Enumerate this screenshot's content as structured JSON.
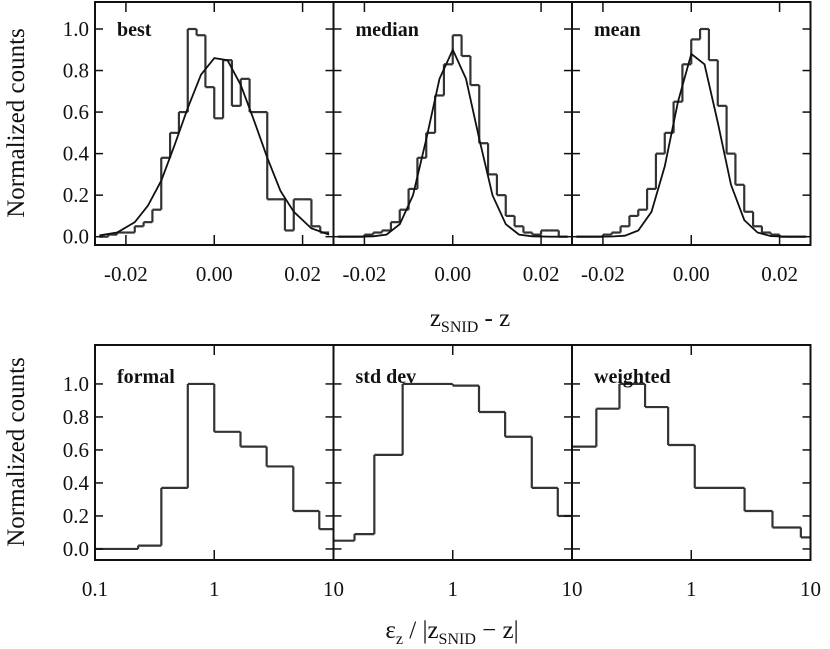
{
  "chart_data": [
    {
      "type": "histogram",
      "label": "best",
      "bins": [
        -0.026,
        -0.024,
        -0.022,
        -0.02,
        -0.018,
        -0.016,
        -0.014,
        -0.012,
        -0.01,
        -0.008,
        -0.006,
        -0.004,
        -0.002,
        0,
        0.002,
        0.004,
        0.006,
        0.008,
        0.01,
        0.012,
        0.014,
        0.016,
        0.018,
        0.02,
        0.022,
        0.024,
        0.026
      ],
      "values": [
        0,
        0.01,
        0.02,
        0.02,
        0.05,
        0.07,
        0.13,
        0.38,
        0.5,
        0.6,
        1.0,
        0.97,
        0.72,
        0.57,
        0.85,
        0.63,
        0.76,
        0.6,
        0.6,
        0.18,
        0.18,
        0.03,
        0.18,
        0.18,
        0.05,
        0.02
      ],
      "curve": {
        "x": [
          -0.026,
          -0.022,
          -0.018,
          -0.015,
          -0.012,
          -0.009,
          -0.006,
          -0.003,
          0,
          0.003,
          0.006,
          0.009,
          0.012,
          0.015,
          0.018,
          0.022,
          0.026
        ],
        "y": [
          0.006,
          0.02,
          0.07,
          0.15,
          0.27,
          0.44,
          0.62,
          0.78,
          0.86,
          0.85,
          0.73,
          0.56,
          0.38,
          0.22,
          0.12,
          0.04,
          0.01
        ]
      },
      "xlim": [
        -0.027,
        0.027
      ],
      "ylim": [
        -0.04,
        1.13
      ],
      "xticks": [
        -0.02,
        {
          "value": 0,
          "label": "0.00"
        },
        0.02
      ],
      "yticks": [
        {
          "value": 0,
          "label": "0.0"
        },
        0.2,
        0.4,
        0.6,
        0.8,
        {
          "value": 1,
          "label": "1.0"
        }
      ],
      "ytick_labels": true,
      "xscale": "linear",
      "color": "#333333"
    },
    {
      "type": "histogram",
      "label": "median",
      "bins": [
        -0.026,
        -0.024,
        -0.022,
        -0.02,
        -0.018,
        -0.016,
        -0.014,
        -0.012,
        -0.01,
        -0.008,
        -0.006,
        -0.004,
        -0.002,
        0,
        0.002,
        0.004,
        0.006,
        0.008,
        0.01,
        0.012,
        0.014,
        0.016,
        0.018,
        0.02,
        0.022,
        0.024,
        0.026
      ],
      "values": [
        0,
        0,
        0,
        0.01,
        0.02,
        0.03,
        0.07,
        0.13,
        0.23,
        0.38,
        0.5,
        0.68,
        0.83,
        0.97,
        0.87,
        0.73,
        0.45,
        0.3,
        0.2,
        0.1,
        0.05,
        0.02,
        0.01,
        0.03,
        0.03,
        0
      ],
      "curve": {
        "x": [
          -0.026,
          -0.022,
          -0.018,
          -0.015,
          -0.012,
          -0.009,
          -0.006,
          -0.003,
          0,
          0.003,
          0.006,
          0.009,
          0.012,
          0.015,
          0.018,
          0.022,
          0.026
        ],
        "y": [
          0,
          0,
          0.002,
          0.01,
          0.06,
          0.2,
          0.47,
          0.76,
          0.9,
          0.76,
          0.47,
          0.2,
          0.06,
          0.01,
          0.002,
          0,
          0
        ]
      },
      "xlim": [
        -0.027,
        0.027
      ],
      "ylim": [
        -0.04,
        1.13
      ],
      "xticks": [
        -0.02,
        {
          "value": 0,
          "label": "0.00"
        },
        0.02
      ],
      "yticks": [
        {
          "value": 0,
          "label": "0.0"
        },
        0.2,
        0.4,
        0.6,
        0.8,
        {
          "value": 1,
          "label": "1.0"
        }
      ],
      "ytick_labels": false,
      "xscale": "linear",
      "color": "#333333"
    },
    {
      "type": "histogram",
      "label": "mean",
      "bins": [
        -0.026,
        -0.024,
        -0.022,
        -0.02,
        -0.018,
        -0.016,
        -0.014,
        -0.012,
        -0.01,
        -0.008,
        -0.006,
        -0.004,
        -0.002,
        0,
        0.002,
        0.004,
        0.006,
        0.008,
        0.01,
        0.012,
        0.014,
        0.016,
        0.018,
        0.02,
        0.022,
        0.024,
        0.026
      ],
      "values": [
        0,
        0,
        0,
        0.01,
        0.02,
        0.05,
        0.1,
        0.13,
        0.23,
        0.4,
        0.5,
        0.65,
        0.83,
        0.95,
        1.0,
        0.85,
        0.63,
        0.4,
        0.25,
        0.12,
        0.05,
        0.02,
        0.01,
        0,
        0,
        0
      ],
      "curve": {
        "x": [
          -0.026,
          -0.022,
          -0.018,
          -0.015,
          -0.012,
          -0.009,
          -0.006,
          -0.003,
          0,
          0.003,
          0.006,
          0.009,
          0.012,
          0.015,
          0.018,
          0.022,
          0.026
        ],
        "y": [
          0,
          0,
          0.001,
          0.005,
          0.03,
          0.12,
          0.34,
          0.65,
          0.88,
          0.83,
          0.55,
          0.25,
          0.08,
          0.02,
          0.003,
          0,
          0
        ]
      },
      "xlim": [
        -0.027,
        0.027
      ],
      "ylim": [
        -0.04,
        1.13
      ],
      "xticks": [
        -0.02,
        {
          "value": 0,
          "label": "0.00"
        },
        0.02
      ],
      "yticks": [
        {
          "value": 0,
          "label": "0.0"
        },
        0.2,
        0.4,
        0.6,
        0.8,
        {
          "value": 1,
          "label": "1.0"
        }
      ],
      "ytick_labels": false,
      "xscale": "linear",
      "color": "#333333"
    },
    {
      "type": "histogram",
      "label": "formal",
      "bins": [
        0.1,
        0.23,
        0.36,
        0.6,
        1.0,
        1.66,
        2.75,
        4.6,
        7.6,
        10
      ],
      "values": [
        0,
        0.02,
        0.37,
        1.0,
        0.71,
        0.62,
        0.5,
        0.23,
        0.12
      ],
      "xlim": [
        0.1,
        10
      ],
      "ylim": [
        -0.067,
        1.236
      ],
      "xticks": [
        0.1,
        1,
        10
      ],
      "yticks": [
        {
          "value": 0,
          "label": "0.0"
        },
        0.2,
        0.4,
        0.6,
        0.8,
        {
          "value": 1,
          "label": "1.0"
        }
      ],
      "ytick_labels": true,
      "xscale": "log",
      "color": "#333333"
    },
    {
      "type": "histogram",
      "label": "std dev",
      "bins": [
        0.1,
        0.15,
        0.22,
        0.38,
        0.62,
        1.0,
        1.66,
        2.75,
        4.6,
        7.6,
        10
      ],
      "values": [
        0.05,
        0.09,
        0.57,
        1.0,
        1.0,
        0.99,
        0.83,
        0.68,
        0.37,
        0.2
      ],
      "xlim": [
        0.1,
        10
      ],
      "ylim": [
        -0.067,
        1.236
      ],
      "xticks": [
        1,
        10
      ],
      "yticks": [
        {
          "value": 0,
          "label": "0.0"
        },
        0.2,
        0.4,
        0.6,
        0.8,
        {
          "value": 1,
          "label": "1.0"
        }
      ],
      "ytick_labels": false,
      "xscale": "log",
      "color": "#333333"
    },
    {
      "type": "histogram",
      "label": "weighted",
      "bins": [
        0.1,
        0.16,
        0.25,
        0.41,
        0.64,
        1.07,
        1.74,
        2.8,
        4.8,
        8.3,
        10
      ],
      "values": [
        0.62,
        0.85,
        1.0,
        0.86,
        0.63,
        0.37,
        0.37,
        0.23,
        0.13,
        0.07
      ],
      "xlim": [
        0.1,
        10
      ],
      "ylim": [
        -0.067,
        1.236
      ],
      "xticks": [
        1,
        10
      ],
      "yticks": [
        {
          "value": 0,
          "label": "0.0"
        },
        0.2,
        0.4,
        0.6,
        0.8,
        {
          "value": 1,
          "label": "1.0"
        }
      ],
      "ytick_labels": false,
      "xscale": "log",
      "color": "#333333"
    }
  ],
  "figure_labels": {
    "top_ylabel": "Normalized counts",
    "top_xlabel": [
      "z",
      "SNID",
      " - z"
    ],
    "bottom_ylabel": "Normalized counts",
    "bottom_xlabel": [
      "ε",
      "z",
      " / |z",
      "SNID",
      " − z|"
    ]
  }
}
